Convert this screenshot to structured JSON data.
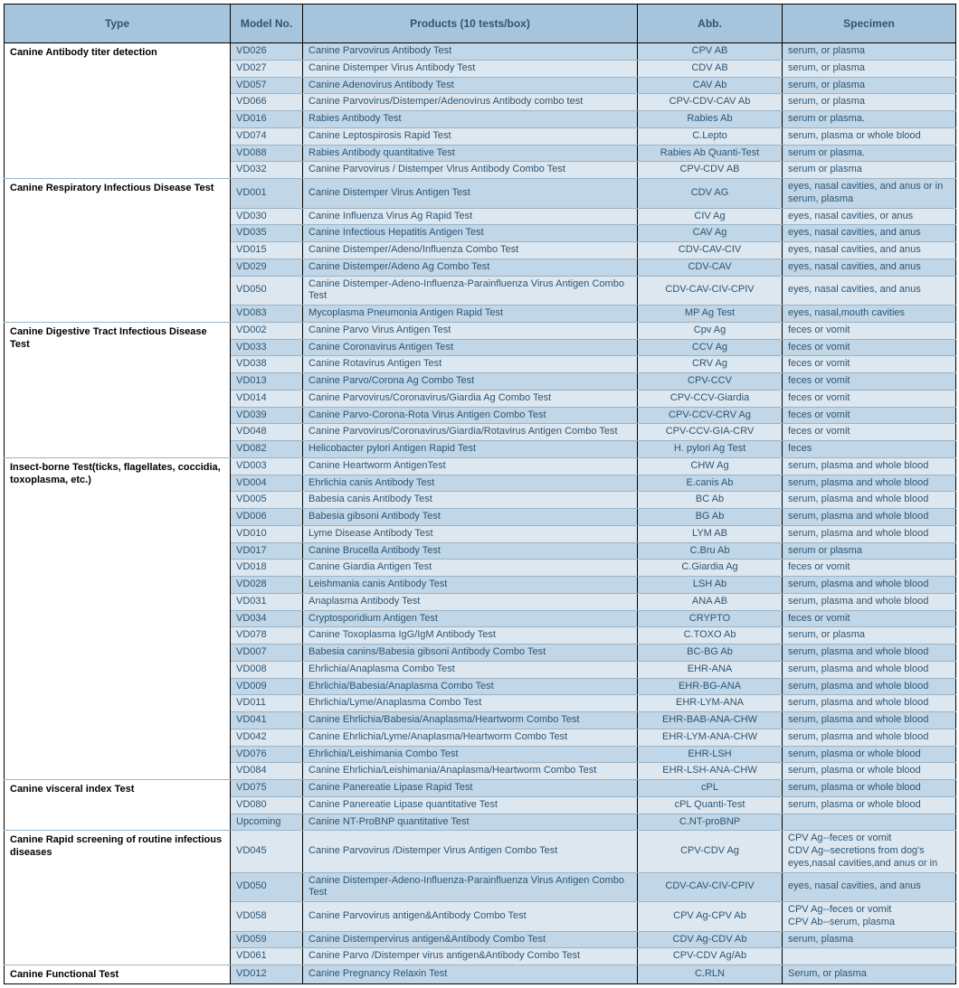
{
  "headers": {
    "type": "Type",
    "model": "Model No.",
    "products": "Products (10 tests/box)",
    "abb": "Abb.",
    "specimen": "Specimen"
  },
  "colors": {
    "header_bg": "#a6c5dd",
    "shade_dark": "#c1d6e6",
    "shade_light": "#dce7f0",
    "text": "#2d5574"
  },
  "groups": [
    {
      "type": "Canine Antibody titer detection",
      "rows": [
        {
          "model": "VD026",
          "product": "Canine Parvovirus Antibody Test",
          "abb": "CPV AB",
          "spec": "serum, or plasma"
        },
        {
          "model": "VD027",
          "product": "Canine Distemper Virus Antibody Test",
          "abb": "CDV AB",
          "spec": "serum, or plasma"
        },
        {
          "model": "VD057",
          "product": "Canine Adenovirus Antibody Test",
          "abb": "CAV Ab",
          "spec": "serum, or plasma"
        },
        {
          "model": "VD066",
          "product": "Canine Parvovirus/Distemper/Adenovirus Antibody combo test",
          "abb": "CPV-CDV-CAV Ab",
          "spec": "serum, or plasma"
        },
        {
          "model": "VD016",
          "product": "Rabies Antibody Test",
          "abb": "Rabies Ab",
          "spec": "serum or plasma."
        },
        {
          "model": "VD074",
          "product": "Canine Leptospirosis Rapid Test",
          "abb": "C.Lepto",
          "spec": "serum, plasma or whole blood"
        },
        {
          "model": "VD088",
          "product": "Rabies Antibody quantitative Test",
          "abb": "Rabies Ab Quanti-Test",
          "spec": "serum or plasma."
        },
        {
          "model": "VD032",
          "product": "Canine Parvovirus / Distemper Virus Antibody Combo Test",
          "abb": "CPV-CDV AB",
          "spec": "serum or plasma"
        }
      ]
    },
    {
      "type": "Canine Respiratory Infectious Disease Test",
      "rows": [
        {
          "model": "VD001",
          "product": "Canine Distemper Virus Antigen Test",
          "abb": "CDV AG",
          "spec": "eyes, nasal cavities, and anus or in serum, plasma"
        },
        {
          "model": "VD030",
          "product": "Canine Influenza Virus Ag Rapid Test",
          "abb": "CIV Ag",
          "spec": "eyes, nasal cavities, or anus"
        },
        {
          "model": "VD035",
          "product": "Canine Infectious Hepatitis Antigen Test",
          "abb": "CAV Ag",
          "spec": "eyes, nasal cavities, and anus"
        },
        {
          "model": "VD015",
          "product": "Canine Distemper/Adeno/Influenza Combo Test",
          "abb": "CDV-CAV-CIV",
          "spec": "eyes, nasal cavities, and anus"
        },
        {
          "model": "VD029",
          "product": "Canine Distemper/Adeno Ag Combo Test",
          "abb": "CDV-CAV",
          "spec": "eyes, nasal cavities, and anus"
        },
        {
          "model": "VD050",
          "product": "Canine Distemper-Adeno-Influenza-Parainfluenza Virus Antigen Combo Test",
          "abb": "CDV-CAV-CIV-CPIV",
          "spec": "eyes, nasal cavities, and anus"
        },
        {
          "model": "VD083",
          "product": "Mycoplasma Pneumonia Antigen Rapid Test",
          "abb": "MP Ag Test",
          "spec": "eyes, nasal,mouth cavities"
        }
      ]
    },
    {
      "type": "Canine Digestive Tract Infectious Disease Test",
      "rows": [
        {
          "model": "VD002",
          "product": "Canine Parvo Virus Antigen Test",
          "abb": "Cpv Ag",
          "spec": "feces or vomit"
        },
        {
          "model": "VD033",
          "product": "Canine Coronavirus Antigen Test",
          "abb": "CCV Ag",
          "spec": "feces or vomit"
        },
        {
          "model": "VD038",
          "product": "Canine Rotavirus Antigen Test",
          "abb": "CRV Ag",
          "spec": "feces or vomit"
        },
        {
          "model": "VD013",
          "product": "Canine Parvo/Corona Ag Combo Test",
          "abb": "CPV-CCV",
          "spec": "feces or vomit"
        },
        {
          "model": "VD014",
          "product": "Canine Parvovirus/Coronavirus/Giardia Ag Combo Test",
          "abb": "CPV-CCV-Giardia",
          "spec": "feces or vomit"
        },
        {
          "model": "VD039",
          "product": "Canine Parvo-Corona-Rota Virus Antigen Combo Test",
          "abb": "CPV-CCV-CRV Ag",
          "spec": "feces or vomit"
        },
        {
          "model": "VD048",
          "product": "Canine Parvovirus/Coronavirus/Giardia/Rotavirus Antigen Combo Test",
          "abb": "CPV-CCV-GIA-CRV",
          "spec": "feces or vomit"
        },
        {
          "model": "VD082",
          "product": "Helicobacter pylori Antigen Rapid Test",
          "abb": "H. pylori Ag Test",
          "spec": "feces"
        }
      ]
    },
    {
      "type": "Insect-borne Test(ticks, flagellates, coccidia, toxoplasma, etc.)",
      "rows": [
        {
          "model": "VD003",
          "product": "Canine Heartworm AntigenTest",
          "abb": "CHW Ag",
          "spec": "serum, plasma and whole blood"
        },
        {
          "model": "VD004",
          "product": "Ehrlichia canis Antibody Test",
          "abb": "E.canis Ab",
          "spec": "serum, plasma and whole blood"
        },
        {
          "model": "VD005",
          "product": "Babesia canis Antibody Test",
          "abb": "BC Ab",
          "spec": "serum, plasma and whole blood"
        },
        {
          "model": "VD006",
          "product": "Babesia gibsoni Antibody Test",
          "abb": "BG Ab",
          "spec": "serum, plasma and whole blood"
        },
        {
          "model": "VD010",
          "product": "Lyme Disease Antibody Test",
          "abb": "LYM AB",
          "spec": "serum, plasma and whole blood"
        },
        {
          "model": "VD017",
          "product": "Canine Brucella Antibody Test",
          "abb": "C.Bru Ab",
          "spec": "serum or plasma"
        },
        {
          "model": "VD018",
          "product": "Canine Giardia Antigen Test",
          "abb": "C.Giardia Ag",
          "spec": "feces or vomit"
        },
        {
          "model": "VD028",
          "product": "Leishmania canis Antibody Test",
          "abb": "LSH Ab",
          "spec": "serum, plasma and whole blood"
        },
        {
          "model": "VD031",
          "product": "Anaplasma Antibody Test",
          "abb": "ANA AB",
          "spec": "serum, plasma and whole blood"
        },
        {
          "model": "VD034",
          "product": "Cryptosporidium Antigen Test",
          "abb": "CRYPTO",
          "spec": "feces or vomit"
        },
        {
          "model": "VD078",
          "product": "Canine Toxoplasma IgG/IgM Antibody Test",
          "abb": "C.TOXO Ab",
          "spec": "serum, or plasma"
        },
        {
          "model": "VD007",
          "product": "Babesia canins/Babesia gibsoni Antibody Combo Test",
          "abb": "BC-BG Ab",
          "spec": "serum, plasma and whole blood"
        },
        {
          "model": "VD008",
          "product": "Ehrlichia/Anaplasma Combo Test",
          "abb": "EHR-ANA",
          "spec": "serum, plasma and whole blood"
        },
        {
          "model": "VD009",
          "product": "Ehrlichia/Babesia/Anaplasma Combo Test",
          "abb": "EHR-BG-ANA",
          "spec": "serum, plasma and whole blood"
        },
        {
          "model": "VD011",
          "product": "Ehrlichia/Lyme/Anaplasma Combo Test",
          "abb": "EHR-LYM-ANA",
          "spec": "serum, plasma and whole blood"
        },
        {
          "model": "VD041",
          "product": "Canine Ehrlichia/Babesia/Anaplasma/Heartworm Combo Test",
          "abb": "EHR-BAB-ANA-CHW",
          "spec": "serum, plasma and whole blood"
        },
        {
          "model": "VD042",
          "product": "Canine Ehrlichia/Lyme/Anaplasma/Heartworm Combo Test",
          "abb": "EHR-LYM-ANA-CHW",
          "spec": "serum, plasma and whole blood"
        },
        {
          "model": "VD076",
          "product": "Ehrlichia/Leishimania Combo Test",
          "abb": "EHR-LSH",
          "spec": "serum, plasma or whole blood"
        },
        {
          "model": "VD084",
          "product": "Canine Ehrlichia/Leishimania/Anaplasma/Heartworm Combo Test",
          "abb": "EHR-LSH-ANA-CHW",
          "spec": "serum, plasma or whole blood"
        }
      ]
    },
    {
      "type": "Canine visceral index Test",
      "rows": [
        {
          "model": "VD075",
          "product": "Canine Panereatie Lipase Rapid Test",
          "abb": "cPL",
          "spec": "serum, plasma or whole blood"
        },
        {
          "model": "VD080",
          "product": "Canine Panereatie Lipase quantitative Test",
          "abb": "cPL Quanti-Test",
          "spec": "serum, plasma or whole blood"
        },
        {
          "model": "Upcoming",
          "product": "Canine NT-ProBNP quantitative Test",
          "abb": "C.NT-proBNP",
          "spec": ""
        }
      ]
    },
    {
      "type": "Canine Rapid screening of routine infectious diseases",
      "rows": [
        {
          "model": "VD045",
          "product": "Canine Parvovirus /Distemper Virus Antigen Combo Test",
          "abb": "CPV-CDV Ag",
          "spec": "CPV Ag--feces or vomit\nCDV Ag--secretions from dog's eyes,nasal cavities,and anus or in"
        },
        {
          "model": "VD050",
          "product": "Canine Distemper-Adeno-Influenza-Parainfluenza Virus Antigen Combo Test",
          "abb": "CDV-CAV-CIV-CPIV",
          "spec": "eyes, nasal cavities, and anus"
        },
        {
          "model": "VD058",
          "product": "Canine Parvovirus antigen&Antibody Combo Test",
          "abb": "CPV Ag-CPV Ab",
          "spec": "CPV Ag--feces or vomit\nCPV Ab--serum, plasma"
        },
        {
          "model": "VD059",
          "product": "Canine Distempervirus antigen&Antibody Combo Test",
          "abb": "CDV Ag-CDV Ab",
          "spec": "serum, plasma"
        },
        {
          "model": "VD061",
          "product": "Canine Parvo /Distemper virus antigen&Antibody Combo Test",
          "abb": "CPV-CDV Ag/Ab",
          "spec": ""
        }
      ]
    },
    {
      "type": "Canine Functional Test",
      "rows": [
        {
          "model": "VD012",
          "product": "Canine Pregnancy Relaxin Test",
          "abb": "C.RLN",
          "spec": "Serum, or plasma"
        }
      ]
    }
  ]
}
